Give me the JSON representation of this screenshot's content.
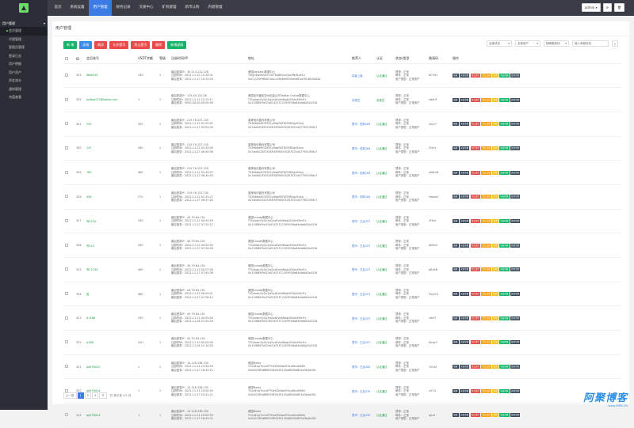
{
  "sidebar": {
    "group": "用户管理",
    "items": [
      "会员管理",
      "代理管理",
      "管理员管理",
      "登录日志",
      "用户明细",
      "用户资产",
      "资金流水",
      "通知管理",
      "充值查看"
    ]
  },
  "topnav": [
    "首页",
    "系统设置",
    "用户管理",
    "财务记录",
    "交易中心",
    "矿机管理",
    "新币认购",
    "内容管理"
  ],
  "topnav_active": 2,
  "topbar": {
    "user": "admin ▾",
    "refresh_icon": "⟳",
    "trash_icon": "🗑"
  },
  "panel": {
    "title": "用户管理"
  },
  "toolbar": {
    "buttons": [
      {
        "label": "新 增",
        "color": "g"
      },
      {
        "label": "冻结",
        "color": "b"
      },
      {
        "label": "解冻",
        "color": "r"
      },
      {
        "label": "允许提币",
        "color": "r"
      },
      {
        "label": "禁止提币",
        "color": "r"
      },
      {
        "label": "删除",
        "color": "r"
      },
      {
        "label": "新增虚拟",
        "color": "g"
      }
    ],
    "filters": [
      "全部状态",
      "全部用户",
      "按邮箱查找"
    ],
    "search_placeholder": "输入邮箱查找"
  },
  "table": {
    "headers": [
      "",
      "ID",
      "会员账号",
      "USDT余额",
      "等级",
      "注册时间/IP",
      "地址",
      "推荐人",
      "认证",
      "状态/类型",
      "邀请码",
      "操作"
    ],
    "rows": [
      {
        "id": "333",
        "acc": "f8b8333",
        "bal": "130",
        "lvl": "1",
        "reg": [
          "最后登录IP：35.213.212.228",
          "注册时间：2022-11-12 15:28:31",
          "最后登录：2022-11-17 10:15:20"
        ],
        "addr": [
          "美国Amazon数据中心",
          "TXqjhEwDVueY1utTTaqNQsuQps9Ny8ue12",
          "0xC2C2fe9B3ECb4c1C8b6d5E06a0d81b09C4B45ADA"
        ],
        "ref": "探客上客",
        "auth": "认证通过",
        "status": [
          "提现：正常",
          "邮件：正常",
          "用户类型：正常用户"
        ],
        "code": "6CYQv"
      },
      {
        "id": "332",
        "acc": "asdfaa073@sohoo.com",
        "bal": "1",
        "lvl": "1",
        "reg": [
          "最后登录IP：175.40.151.58",
          "注册时间：2022-11-12 12:25:11",
          "最后登录：0000-00-00 00:00:00"
        ],
        "addr": [
          "美国加利福尼亚州旧金山市Twitter Online数据中心",
          "TYCpbwu5yQc2qGuaEvbhNsqbZhXoXHmFv",
          "0x11f8B5f9a37a024F1F121E991Ba64bfa6d2b4316"
        ],
        "ref": "未提交",
        "auth": "未提交",
        "status": [
          "提现：正常",
          "邮件：正常",
          "用户类型：正常用户"
        ],
        "code": "wbtUf"
      },
      {
        "id": "331",
        "acc": "250",
        "bal": "350",
        "lvl": "1",
        "reg": [
          "最后登录IP：219.76.157.135",
          "注册时间：2022-11-12 01:55:01",
          "最后登录：2022-11-27 05:55:34"
        ],
        "addr": [
          "香港电讯盈科有限公司",
          "TX36b6wM7D5S1yNwjR6T8GYfB2gzSXxq",
          "0x7ab64235353f3f3fE90005287025d47790C956c7"
        ],
        "ref": "提币：佐助284",
        "auth": "认证通过",
        "status": [
          "提现：正常",
          "邮件：正常",
          "用户类型：正常用户"
        ],
        "code": "z0yc7"
      },
      {
        "id": "330",
        "acc": "147",
        "bal": "280",
        "lvl": "1",
        "reg": [
          "最后登录IP：219.76.157.135",
          "注册时间：2022-11-12 01:50:00",
          "最后登录：2022-11-27 06:40:56"
        ],
        "addr": [
          "香港电讯盈科有限公司",
          "TX36b6wM7D5S1yNwjR6T8GYfB2gzSXxq",
          "0x7ab64235353f3f3fE90005287025d47790C956c7"
        ],
        "ref": "提币：佐助284",
        "auth": "认证通过",
        "status": [
          "提现：正常",
          "邮件：正常",
          "用户类型：正常用户"
        ],
        "code": "ZIoYy"
      },
      {
        "id": "329",
        "acc": "780",
        "bal": "460",
        "lvl": "1",
        "reg": [
          "最后登录IP：219.76.157.135",
          "注册时间：2022-11-12 01:45:57",
          "最后登录：2022-11-27 06:44:43"
        ],
        "addr": [
          "香港电讯盈科有限公司",
          "TX36b6wM7D5S1yNwjR6T8GYfB2gzSXxq",
          "0x7ab64235353f3f3fE90005287025d47790C956c7"
        ],
        "ref": "提币：佐助284",
        "auth": "认证通过",
        "status": [
          "提现：正常",
          "邮件：正常",
          "用户类型：正常用户"
        ],
        "code": "yK8mB"
      },
      {
        "id": "328",
        "acc": "456",
        "bal": "270",
        "lvl": "1",
        "reg": [
          "最后登录IP：219.76.157.135",
          "注册时间：2022-11-12 01:31:27",
          "最后登录：2022-11-27 06:47:02"
        ],
        "addr": [
          "香港电讯盈科有限公司",
          "TX36b6wM7D5S1yNwjR6T8GYfB2gzSXxq",
          "0x7ab64235353f3f3fE90005287025d47790C956c7"
        ],
        "ref": "提币：佐助284",
        "auth": "认证通过",
        "status": [
          "提现：正常",
          "邮件：正常",
          "用户类型：正常用户"
        ],
        "code": "Hwqvd"
      },
      {
        "id": "327",
        "acc": "号1234",
        "bal": "330",
        "lvl": "1",
        "reg": [
          "最后登录IP：45.79.64.130",
          "注册时间：2022-11-12 00:55:29",
          "最后登录：2022-11-27 07:24:21"
        ],
        "addr": [
          "美国Linode数据中心",
          "TYCpbwu5yQc2qGuaEvbhNsqbZhXoXHmFv",
          "0x11f8B5f9a37a024F1F121E991Ba64bfa6d2b4316"
        ],
        "ref": "提币：王后207",
        "auth": "认证通过",
        "status": [
          "提现：正常",
          "邮件：正常",
          "用户类型：正常用户"
        ],
        "code": "zFfcd"
      },
      {
        "id": "326",
        "acc": "号123",
        "bal": "340",
        "lvl": "1",
        "reg": [
          "最后登录IP：45.79.64.130",
          "注册时间：2022-11-12 00:45:54",
          "最后登录：2022-11-27 07:34:40"
        ],
        "addr": [
          "美国Linode数据中心",
          "TYCpbwu5yQc2qGuaEvbhNsqbZhXoXHmFv",
          "0x11f8B5f9a37a024F1F121E991Ba64bfa6d2b4316"
        ],
        "ref": "提币：王后207",
        "auth": "认证通过",
        "status": [
          "提现：正常",
          "邮件：正常",
          "用户类型：正常用户"
        ],
        "code": "qKBcd"
      },
      {
        "id": "325",
        "acc": "号12234",
        "bal": "490",
        "lvl": "1",
        "reg": [
          "最后登录IP：45.79.64.130",
          "注册时间：2022-11-12 00:07:00",
          "最后登录：2022-11-27 07:45:38"
        ],
        "addr": [
          "美国Linode数据中心",
          "TYCpbwu5yQc2qGuaEvbhNsqbZhXoXHmFv",
          "0x11f8B5f9a37a024F1F121E991Ba64bfa6d2b4316"
        ],
        "ref": "提币：王后207",
        "auth": "认证通过",
        "status": [
          "提现：正常",
          "邮件：正常",
          "用户类型：正常用户"
        ],
        "code": "gRxKB"
      },
      {
        "id": "324",
        "acc": "哈",
        "bal": "480",
        "lvl": "1",
        "reg": [
          "最后登录IP：45.79.64.130",
          "注册时间：2022-11-12 00:00:01",
          "最后登录：2022-11-27 07:56:12"
        ],
        "addr": [
          "美国Linode数据中心",
          "TYCpbwu5yQc2qGuaEvbhNsqbZhXoXHmFv",
          "0x11f8B5f9a37a024F1F121E991Ba64bfa6d2b4316"
        ],
        "ref": "提币：王后207",
        "auth": "认证通过",
        "status": [
          "提现：正常",
          "邮件：正常",
          "用户类型：正常用户"
        ],
        "code": "PuynrK"
      },
      {
        "id": "323",
        "acc": "A1168",
        "bal": "230",
        "lvl": "1",
        "reg": [
          "最后登录IP：45.79.64.130",
          "注册时间：2022-11-11 00:00:00",
          "最后登录：2022-11-26 21:50:16"
        ],
        "addr": [
          "美国Linode数据中心",
          "TYCpbwu5yQc2qGuaEvbhNsqbZhXoXHmFv",
          "0x11f8B5f9a37a024F1F121E991Ba64bfa6d2b4316"
        ],
        "ref": "提币：王后207",
        "auth": "认证通过",
        "status": [
          "提现：正常",
          "邮件：正常",
          "用户类型：正常用户"
        ],
        "code": "zdrhT"
      },
      {
        "id": "322",
        "acc": "A168",
        "bal": "410",
        "lvl": "1",
        "reg": [
          "最后登录IP：45.79.64.130",
          "注册时间：2022-11-10 00:00:00",
          "最后登录：2022-11-26 21:14:29"
        ],
        "addr": [
          "美国Linode数据中心",
          "TYCpbwu5yQc2qGuaEvbhNsqbZhXoXHmFv",
          "0x11f8B5f9a37a024F1F121E991Ba64bfa6d2b4316"
        ],
        "ref": "提币：王后207",
        "auth": "认证通过",
        "status": [
          "提现：正常",
          "邮件：正常",
          "用户类型：正常用户"
        ],
        "code": "Khqx3"
      },
      {
        "id": "321",
        "acc": "qq978415",
        "bal": "1",
        "lvl": "1",
        "reg": [
          "最后登录IP：13.126.238.135",
          "注册时间：2022-11-11 10:56:20",
          "最后登录：2022-11-17 16:42:21"
        ],
        "addr": [
          "美国Nexio",
          "TGLbEupTmndTYHyKZkNwdYUcoWcoB6Xh",
          "0x0A078Fa8B6E05E043E145a8B45d8E4d3b4e08C"
        ],
        "ref": "提币：王后284",
        "auth": "认证通过",
        "status": [
          "提现：正常",
          "邮件：正常",
          "用户类型：正常用户"
        ],
        "code": "TnL5e"
      },
      {
        "id": "320",
        "acc": "qq978414",
        "bal": "1",
        "lvl": "1",
        "reg": [
          "最后登录IP：13.126.238.135",
          "注册时间：2022-11-11 10:54:54",
          "最后登录：2022-11-17 15:51:21"
        ],
        "addr": [
          "美国Nexio",
          "TGLbEupTmndTYHyKZkNwdYUcoWcoB6Xh",
          "0x0A078Fa8B6E05E043E145a8B45d8E4d3b4e08C"
        ],
        "ref": "提币：王后239",
        "auth": "认证通过",
        "status": [
          "提现：正常",
          "邮件：正常",
          "用户类型：正常用户"
        ],
        "code": "u57LI"
      },
      {
        "id": "319",
        "acc": "qq978413",
        "bal": "1",
        "lvl": "1",
        "reg": [
          "最后登录IP：13.126.238.135",
          "注册时间：2022-11-11 10:52:59",
          "最后登录：2022-11-17 16:42:21"
        ],
        "addr": [
          "美国Nexio",
          "TGLbEupTmndTYHyKZkNwdYUcoWcoB6Xh",
          "0x0A078Fa8B6E05E043E145a8B45d8E4d3b4e08C"
        ],
        "ref": "提币：王后239",
        "auth": "认证通过",
        "status": [
          "提现：正常",
          "邮件：正常",
          "用户类型：正常用户"
        ],
        "code": "qjLef"
      }
    ]
  },
  "ops": [
    {
      "label": "编辑",
      "color": "d"
    },
    {
      "label": "充值余额",
      "color": "d"
    },
    {
      "label": "禁止提币",
      "color": "r"
    },
    {
      "label": "禁止交易",
      "color": "o"
    },
    {
      "label": "正常",
      "color": "y"
    },
    {
      "label": "冻结余额",
      "color": "g"
    },
    {
      "label": "提现余额",
      "color": "d"
    }
  ],
  "pager": {
    "prev": "上一页",
    "pages": [
      "1",
      "2",
      "3"
    ],
    "next": "下",
    "info": "共 条记录 1/3 页"
  },
  "watermark": {
    "big": "阿聚博客",
    "small": "www.AYBK.CN"
  }
}
